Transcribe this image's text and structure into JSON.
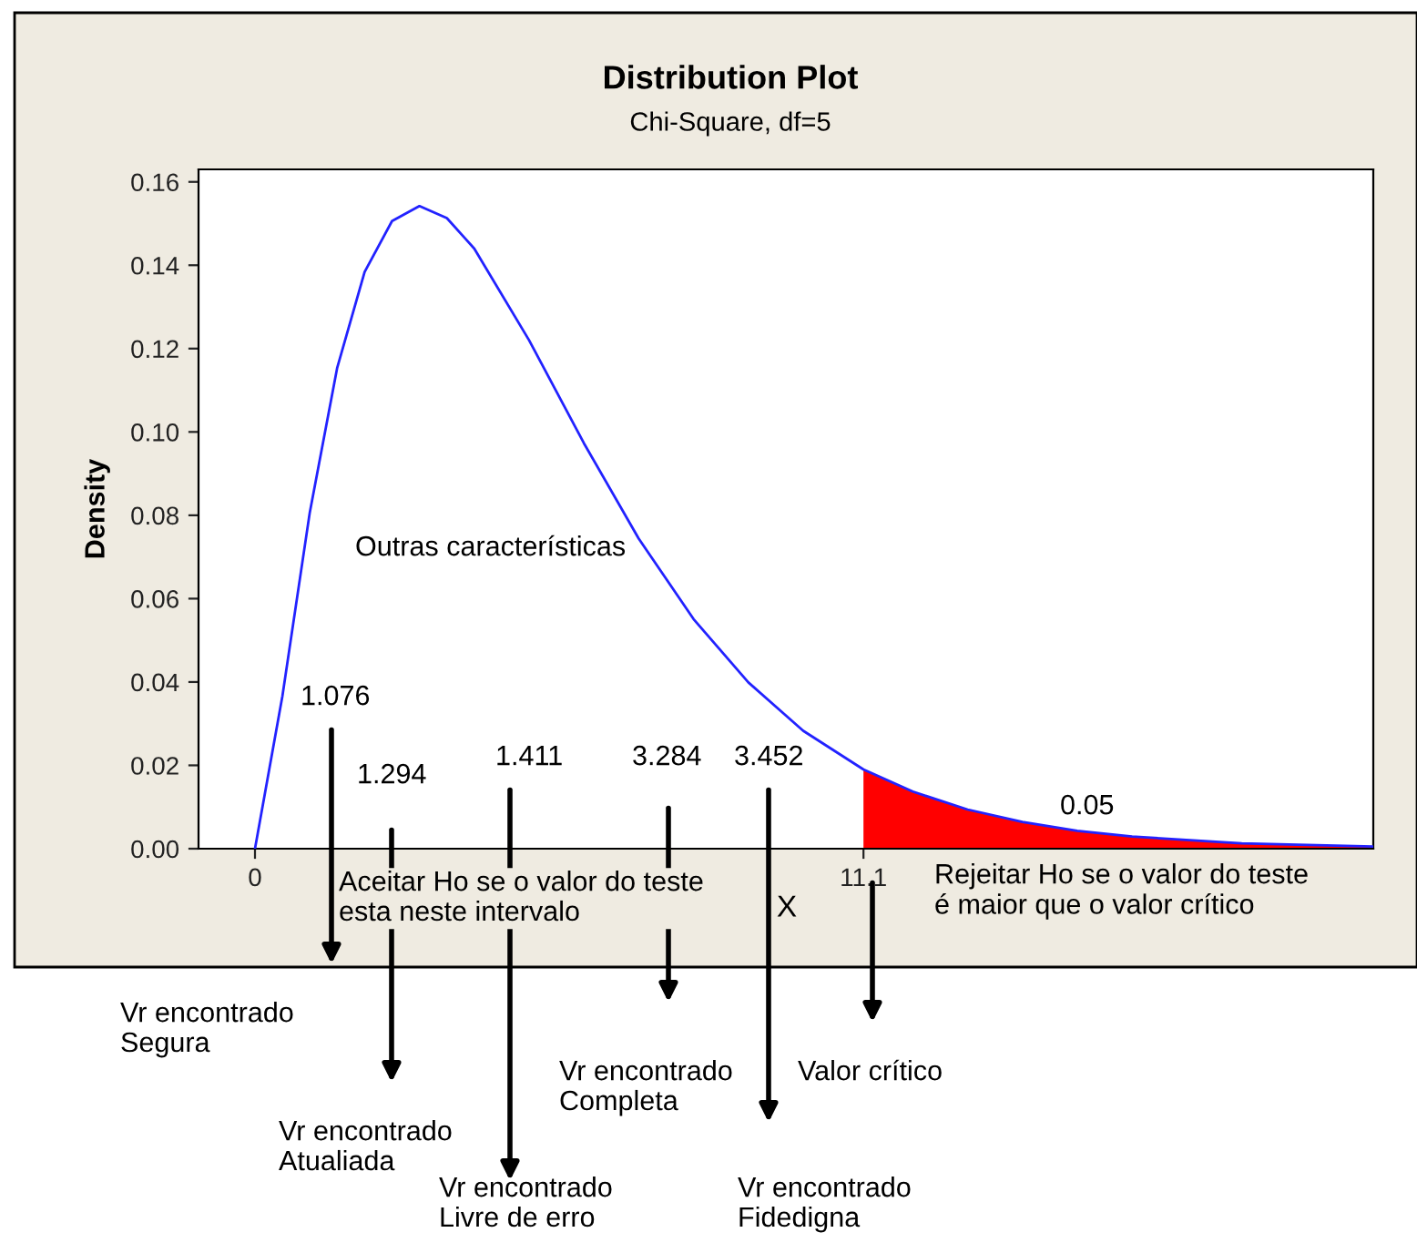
{
  "chart_data": {
    "type": "line",
    "title": "Distribution Plot",
    "subtitle": "Chi-Square, df=5",
    "xlabel": "X",
    "ylabel": "Density",
    "xlim": [
      -1.03,
      20.4
    ],
    "ylim": [
      0,
      0.163
    ],
    "xticks": [
      0,
      11.1
    ],
    "yticks": [
      {
        "value": 0,
        "label": "0.00"
      },
      {
        "value": 0.02,
        "label": "0.02"
      },
      {
        "value": 0.04,
        "label": "0.04"
      },
      {
        "value": 0.06,
        "label": "0.06"
      },
      {
        "value": 0.08,
        "label": "0.08"
      },
      {
        "value": 0.1,
        "label": "0.10"
      },
      {
        "value": 0.12,
        "label": "0.12"
      },
      {
        "value": 0.14,
        "label": "0.14"
      },
      {
        "value": 0.16,
        "label": "0.16"
      }
    ],
    "grid": false,
    "legend": false,
    "marker": "none",
    "line_style": "solid",
    "series": [
      {
        "type": "area",
        "color": "#ff0000",
        "x": [
          11.1,
          12,
          13,
          14,
          15,
          16,
          18,
          20.4
        ],
        "values": [
          0.019,
          0.0137,
          0.0094,
          0.0064,
          0.0043,
          0.0029,
          0.0013,
          0.0005
        ]
      },
      {
        "color": "#2222ff",
        "x": [
          0,
          0.5,
          1,
          1.5,
          2,
          2.5,
          3,
          3.5,
          4,
          5,
          6,
          7,
          8,
          9,
          10,
          11.1,
          12,
          13,
          14,
          15,
          16,
          18,
          20.4
        ],
        "values": [
          0,
          0.0366,
          0.0807,
          0.1154,
          0.1384,
          0.1506,
          0.1542,
          0.1513,
          0.144,
          0.122,
          0.0973,
          0.0744,
          0.0551,
          0.0399,
          0.0283,
          0.019,
          0.0137,
          0.0094,
          0.0064,
          0.0043,
          0.0029,
          0.0013,
          0.0005
        ]
      }
    ],
    "annotations": [
      "Outras características",
      "1.076",
      "1.294",
      "1.411",
      "3.284",
      "3.452",
      "0.05",
      "Aceitar Ho se o valor do teste\nesta neste intervalo",
      "Rejeitar Ho se o valor do teste\né maior que o valor crítico",
      "Vr encontrado\nSegura",
      "Vr encontrado\nAtualiada",
      "Vr encontrado\nLivre de erro",
      "Vr encontrado\nCompleta",
      "Vr encontrado\nFidedigna",
      "Valor crítico"
    ]
  }
}
